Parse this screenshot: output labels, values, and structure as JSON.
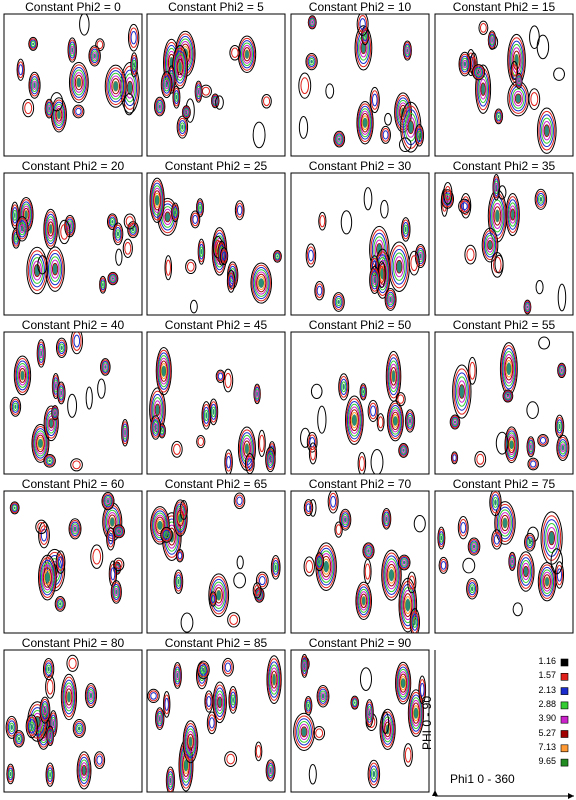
{
  "chart_data": {
    "type": "heatmap",
    "title": "",
    "panel_title_prefix": "Constant Phi2 = ",
    "panels": [
      {
        "phi2": 0,
        "label": "Constant Phi2 = 0"
      },
      {
        "phi2": 5,
        "label": "Constant Phi2 = 5"
      },
      {
        "phi2": 10,
        "label": "Constant Phi2 = 10"
      },
      {
        "phi2": 15,
        "label": "Constant Phi2 = 15"
      },
      {
        "phi2": 20,
        "label": "Constant Phi2 = 20"
      },
      {
        "phi2": 25,
        "label": "Constant Phi2 = 25"
      },
      {
        "phi2": 30,
        "label": "Constant Phi2 = 30"
      },
      {
        "phi2": 35,
        "label": "Constant Phi2 = 35"
      },
      {
        "phi2": 40,
        "label": "Constant Phi2 = 40"
      },
      {
        "phi2": 45,
        "label": "Constant Phi2 = 45"
      },
      {
        "phi2": 50,
        "label": "Constant Phi2 = 50"
      },
      {
        "phi2": 55,
        "label": "Constant Phi2 = 55"
      },
      {
        "phi2": 60,
        "label": "Constant Phi2 = 60"
      },
      {
        "phi2": 65,
        "label": "Constant Phi2 = 65"
      },
      {
        "phi2": 70,
        "label": "Constant Phi2 = 70"
      },
      {
        "phi2": 75,
        "label": "Constant Phi2 = 75"
      },
      {
        "phi2": 80,
        "label": "Constant Phi2 = 80"
      },
      {
        "phi2": 85,
        "label": "Constant Phi2 = 85"
      },
      {
        "phi2": 90,
        "label": "Constant Phi2 = 90"
      }
    ],
    "xlabel": "Phi1  0 - 360",
    "ylabel": "PHI  0 - 90",
    "xlim": [
      0,
      360
    ],
    "ylim": [
      0,
      90
    ],
    "contour_levels": [
      {
        "value": "1.16",
        "color": "#000000"
      },
      {
        "value": "1.57",
        "color": "#e0201a"
      },
      {
        "value": "2.13",
        "color": "#1a2ccc"
      },
      {
        "value": "2.88",
        "color": "#33cc33"
      },
      {
        "value": "3.90",
        "color": "#cc22cc"
      },
      {
        "value": "5.27",
        "color": "#a00000"
      },
      {
        "value": "7.13",
        "color": "#ff9933"
      },
      {
        "value": "9.65",
        "color": "#228b22"
      }
    ],
    "legend_position": "bottom-right"
  }
}
